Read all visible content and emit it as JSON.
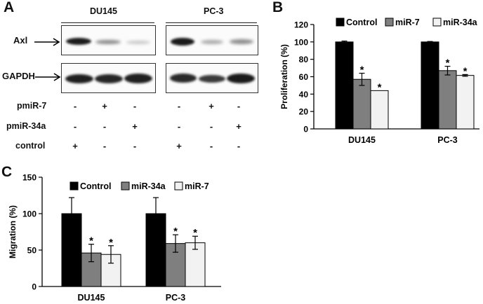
{
  "panel_a": {
    "letter": "A",
    "cell_lines": [
      "DU145",
      "PC-3"
    ],
    "blots": [
      "Axl",
      "GAPDH"
    ],
    "treatments": [
      {
        "label": "pmiR-7",
        "marks": [
          "-",
          "+",
          "-",
          "-",
          "+",
          "-"
        ]
      },
      {
        "label": "pmiR-34a",
        "marks": [
          "-",
          "-",
          "+",
          "-",
          "-",
          "+"
        ]
      },
      {
        "label": "control",
        "marks": [
          "+",
          "-",
          "-",
          "+",
          "-",
          "-"
        ]
      }
    ]
  },
  "panel_b": {
    "letter": "B"
  },
  "panel_c": {
    "letter": "C"
  },
  "chart_data": [
    {
      "panel": "B",
      "type": "bar",
      "ylabel": "Proliferation (%)",
      "ylim": [
        0,
        120
      ],
      "yticks": [
        0,
        20,
        40,
        60,
        80,
        100,
        120
      ],
      "categories": [
        "DU145",
        "PC-3"
      ],
      "legend_position": "top",
      "series": [
        {
          "name": "Control",
          "color": "#000000",
          "values": [
            100,
            100
          ],
          "errors": [
            1,
            0.5
          ],
          "stars": [
            "",
            ""
          ]
        },
        {
          "name": "miR-7",
          "color": "#7f7f7f",
          "values": [
            57,
            67
          ],
          "errors": [
            7,
            5
          ],
          "stars": [
            "*",
            "*"
          ]
        },
        {
          "name": "miR-34a",
          "color": "#f2f2f2",
          "values": [
            44,
            61.5
          ],
          "errors": [
            0,
            1
          ],
          "stars": [
            "*",
            "*"
          ]
        }
      ]
    },
    {
      "panel": "C",
      "type": "bar",
      "ylabel": "Migration (%)",
      "ylim": [
        0,
        150
      ],
      "yticks": [
        0,
        50,
        100,
        150
      ],
      "categories": [
        "DU145",
        "PC-3"
      ],
      "legend_position": "top",
      "series": [
        {
          "name": "Control",
          "color": "#000000",
          "values": [
            100,
            100
          ],
          "errors": [
            22,
            22
          ],
          "stars": [
            "",
            ""
          ]
        },
        {
          "name": "miR-34a",
          "color": "#7f7f7f",
          "values": [
            46,
            59
          ],
          "errors": [
            12,
            12
          ],
          "stars": [
            "*",
            "*"
          ]
        },
        {
          "name": "miR-7",
          "color": "#f2f2f2",
          "values": [
            44,
            60
          ],
          "errors": [
            12,
            9
          ],
          "stars": [
            "*",
            "*"
          ]
        }
      ]
    }
  ]
}
